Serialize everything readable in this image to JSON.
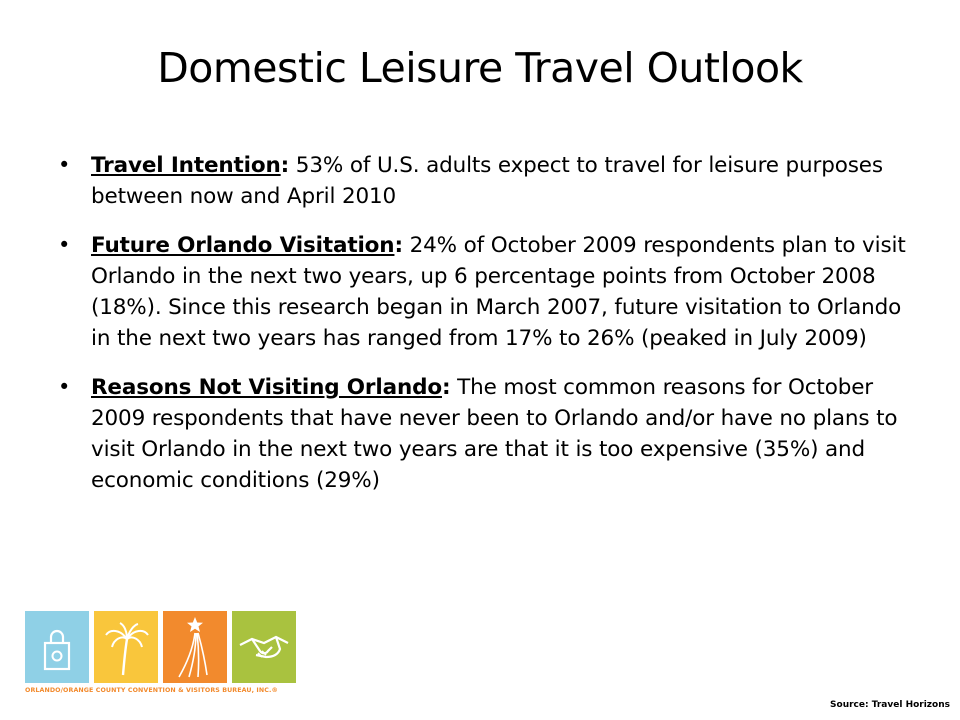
{
  "slide": {
    "title": "Domestic Leisure Travel Outlook",
    "bullets": [
      {
        "heading": "Travel Intention",
        "text": " 53% of U.S. adults expect to travel for leisure purposes between now and April 2010"
      },
      {
        "heading": "Future Orlando Visitation",
        "text": " 24% of October 2009 respondents plan to visit Orlando in the next two years, up 6 percentage points from October 2008 (18%). Since this research began in March 2007, future visitation to Orlando in the next two years has ranged from 17% to 26% (peaked in July 2009)"
      },
      {
        "heading": "Reasons Not Visiting Orlando",
        "text": " The most common reasons for October 2009 respondents that have never been to Orlando and/or have no plans to visit Orlando in the next two years are that it is too expensive (35%) and economic conditions (29%)"
      }
    ],
    "bullet_symbol": "•",
    "colon": ":"
  },
  "logo": {
    "text": "ORLANDO/ORANGE COUNTY CONVENTION & VISITORS BUREAU, INC.®",
    "tiles": [
      {
        "icon": "shopping-bag-icon",
        "color": "#8fd0e6"
      },
      {
        "icon": "palm-tree-icon",
        "color": "#f9c63c"
      },
      {
        "icon": "shooting-star-icon",
        "color": "#f28a2d"
      },
      {
        "icon": "handshake-icon",
        "color": "#a9c23f"
      }
    ]
  },
  "footer": {
    "source": "Source:  Travel Horizons"
  }
}
